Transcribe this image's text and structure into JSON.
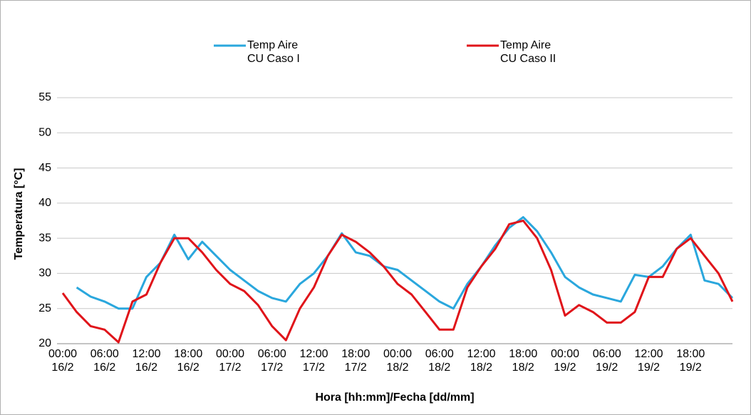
{
  "chart_data": {
    "type": "line",
    "x_label": "Hora [hh:mm]/Fecha [dd/mm]",
    "y_label": "Temperatura [°C]",
    "categories": [
      "00:00\n16/2",
      null,
      null,
      "06:00\n16/2",
      null,
      null,
      "12:00\n16/2",
      null,
      null,
      "18:00\n16/2",
      null,
      null,
      "00:00\n17/2",
      null,
      null,
      "06:00\n17/2",
      null,
      null,
      "12:00\n17/2",
      null,
      null,
      "18:00\n17/2",
      null,
      null,
      "00:00\n18/2",
      null,
      null,
      "06:00\n18/2",
      null,
      null,
      "12:00\n18/2",
      null,
      null,
      "18:00\n18/2",
      null,
      null,
      "00:00\n19/2",
      null,
      null,
      "06:00\n19/2",
      null,
      null,
      "12:00\n19/2",
      null,
      null,
      "18:00\n19/2",
      null,
      null,
      null
    ],
    "series": [
      {
        "name": "Temp Aire\nCU Caso I",
        "color": "#2aa7dd",
        "values": [
          null,
          28,
          26.7,
          26,
          25,
          25,
          29.5,
          31.5,
          35.5,
          32,
          34.5,
          32.5,
          30.5,
          29,
          27.5,
          26.5,
          26,
          28.5,
          30,
          32.5,
          35.7,
          33,
          32.5,
          31,
          30.5,
          29,
          27.5,
          26,
          25,
          28.5,
          31,
          34,
          36.5,
          38,
          36,
          33,
          29.5,
          28,
          27,
          26.5,
          26,
          29.8,
          29.5,
          31,
          33.5,
          35.5,
          29,
          28.5,
          26.5
        ]
      },
      {
        "name": "Temp Aire\nCU Caso II",
        "color": "#e0141a",
        "values": [
          27.2,
          24.5,
          22.5,
          22,
          20.2,
          26,
          27,
          31.5,
          35,
          35,
          33,
          30.5,
          28.5,
          27.5,
          25.5,
          22.5,
          20.5,
          25,
          28,
          32.5,
          35.5,
          34.5,
          33,
          31,
          28.5,
          27,
          24.5,
          22,
          22,
          28,
          31,
          33.5,
          37,
          37.5,
          35,
          30.5,
          24,
          25.5,
          24.5,
          23,
          23,
          24.5,
          29.5,
          29.5,
          33.5,
          35,
          32.5,
          30,
          26
        ]
      }
    ],
    "ylim": [
      20,
      55
    ],
    "yticks": [
      20,
      25,
      30,
      35,
      40,
      45,
      50,
      55
    ],
    "grid": true
  }
}
